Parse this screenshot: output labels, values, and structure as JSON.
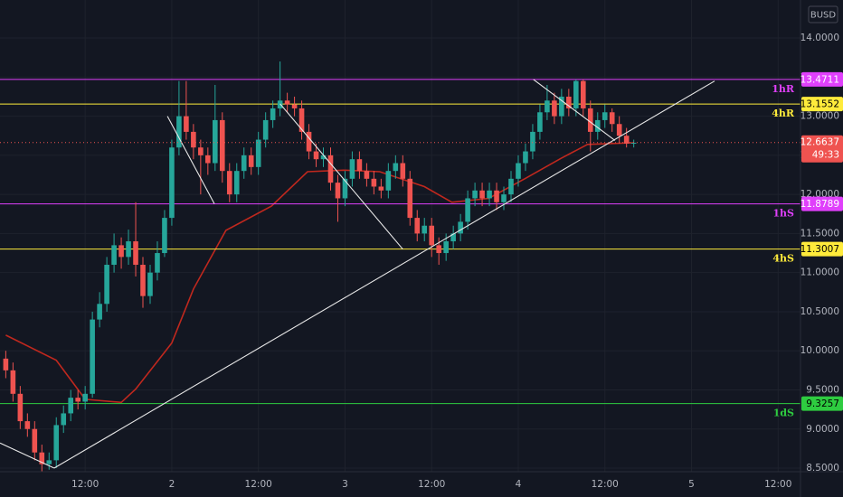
{
  "chart_data": {
    "type": "candlestick",
    "currency": "BUSD",
    "x": [
      -23,
      -22,
      -21,
      -20,
      -19,
      -18,
      -17,
      -16,
      -15,
      -14,
      -13,
      -12,
      -11,
      -10,
      -9,
      -8,
      -7,
      -6,
      -5,
      -4,
      -3,
      -2,
      -1,
      0,
      1,
      2,
      3,
      4,
      5,
      6,
      7,
      8,
      9,
      10,
      11,
      12,
      13,
      14,
      15,
      16,
      17,
      18,
      19,
      20,
      21,
      22,
      23,
      24,
      25,
      26,
      27,
      28,
      29,
      30,
      31,
      32,
      33,
      34,
      35,
      36,
      37,
      38,
      39,
      40,
      41,
      42,
      43,
      44,
      45,
      46,
      47,
      48,
      49,
      50,
      51,
      52,
      53,
      54,
      55,
      56,
      57,
      58,
      59,
      60,
      61,
      62,
      63,
      64
    ],
    "open": [
      9.9,
      9.75,
      9.45,
      9.1,
      9.0,
      8.7,
      8.55,
      8.6,
      9.05,
      9.2,
      9.4,
      9.35,
      9.45,
      10.4,
      10.6,
      11.1,
      11.35,
      11.2,
      11.4,
      11.1,
      10.7,
      11.0,
      11.25,
      11.7,
      12.6,
      13.0,
      12.8,
      12.6,
      12.5,
      12.4,
      12.95,
      12.3,
      12.0,
      12.3,
      12.5,
      12.35,
      12.7,
      12.95,
      13.1,
      13.2,
      13.15,
      13.1,
      12.8,
      12.55,
      12.45,
      12.5,
      12.15,
      11.95,
      12.2,
      12.45,
      12.3,
      12.2,
      12.1,
      12.05,
      12.3,
      12.4,
      12.2,
      11.7,
      11.5,
      11.6,
      11.35,
      11.25,
      11.4,
      11.5,
      11.65,
      11.95,
      12.05,
      11.95,
      12.05,
      11.9,
      12.0,
      12.2,
      12.4,
      12.55,
      12.8,
      13.05,
      13.2,
      13.0,
      13.25,
      13.1,
      13.45,
      13.1,
      12.8,
      12.95,
      13.05,
      12.9,
      12.75,
      12.65
    ],
    "high": [
      10.0,
      9.85,
      9.55,
      9.2,
      9.1,
      8.8,
      8.7,
      9.15,
      9.3,
      9.5,
      9.5,
      9.55,
      10.5,
      10.75,
      11.2,
      11.5,
      11.45,
      11.55,
      11.9,
      11.2,
      11.1,
      11.4,
      11.8,
      12.7,
      13.45,
      13.45,
      12.9,
      12.7,
      12.6,
      13.4,
      13.05,
      12.4,
      12.4,
      12.6,
      12.6,
      12.8,
      13.05,
      13.2,
      13.7,
      13.3,
      13.25,
      13.2,
      12.9,
      12.65,
      12.6,
      12.6,
      12.25,
      12.3,
      12.55,
      12.55,
      12.4,
      12.3,
      12.2,
      12.4,
      12.5,
      12.5,
      12.3,
      11.8,
      11.7,
      11.7,
      11.45,
      11.5,
      11.6,
      11.75,
      12.05,
      12.15,
      12.15,
      12.15,
      12.15,
      12.1,
      12.3,
      12.5,
      12.65,
      12.9,
      13.15,
      13.4,
      13.3,
      13.35,
      13.35,
      13.47,
      13.47,
      13.2,
      13.05,
      13.15,
      13.1,
      13.0,
      12.85,
      12.7
    ],
    "low": [
      9.65,
      9.35,
      9.0,
      8.9,
      8.6,
      8.45,
      8.48,
      8.5,
      8.95,
      9.1,
      9.25,
      9.25,
      9.4,
      10.3,
      10.5,
      11.0,
      11.05,
      11.1,
      10.95,
      10.55,
      10.6,
      10.9,
      11.2,
      11.6,
      12.5,
      12.7,
      12.45,
      12.0,
      12.25,
      12.3,
      12.15,
      11.9,
      11.9,
      12.2,
      12.25,
      12.25,
      12.6,
      12.85,
      13.0,
      13.05,
      13.0,
      12.7,
      12.45,
      12.35,
      12.35,
      12.05,
      11.65,
      11.85,
      12.1,
      12.2,
      12.1,
      12.0,
      11.95,
      11.95,
      12.2,
      12.1,
      11.6,
      11.4,
      11.4,
      11.2,
      11.1,
      11.15,
      11.3,
      11.4,
      11.55,
      11.85,
      11.85,
      11.85,
      11.8,
      11.8,
      11.9,
      12.1,
      12.3,
      12.45,
      12.7,
      12.95,
      12.9,
      12.9,
      13.0,
      13.0,
      13.0,
      12.55,
      12.7,
      12.85,
      12.8,
      12.65,
      12.6,
      12.6
    ],
    "close": [
      9.75,
      9.45,
      9.1,
      9.0,
      8.7,
      8.55,
      8.6,
      9.05,
      9.2,
      9.4,
      9.35,
      9.45,
      10.4,
      10.6,
      11.1,
      11.35,
      11.2,
      11.4,
      11.1,
      10.7,
      11.0,
      11.25,
      11.7,
      12.6,
      13.0,
      12.8,
      12.6,
      12.5,
      12.4,
      12.95,
      12.3,
      12.0,
      12.3,
      12.5,
      12.35,
      12.7,
      12.95,
      13.1,
      13.2,
      13.15,
      13.1,
      12.8,
      12.55,
      12.45,
      12.5,
      12.15,
      11.95,
      12.2,
      12.45,
      12.3,
      12.2,
      12.1,
      12.05,
      12.3,
      12.4,
      12.2,
      11.7,
      11.5,
      11.6,
      11.35,
      11.25,
      11.4,
      11.5,
      11.65,
      11.95,
      12.05,
      11.95,
      12.05,
      11.9,
      12.0,
      12.2,
      12.4,
      12.55,
      12.8,
      13.05,
      13.2,
      13.0,
      13.25,
      13.1,
      13.45,
      13.1,
      12.8,
      12.95,
      13.05,
      12.9,
      12.75,
      12.65,
      12.66
    ],
    "up_color": "#26a69a",
    "down_color": "#ef5350",
    "xlim": [
      -23.8,
      87.1
    ],
    "xticks": [
      {
        "value": -12,
        "label": "12:00"
      },
      {
        "value": 0,
        "label": "2"
      },
      {
        "value": 12,
        "label": "12:00"
      },
      {
        "value": 24,
        "label": "3"
      },
      {
        "value": 36,
        "label": "12:00"
      },
      {
        "value": 48,
        "label": "4"
      },
      {
        "value": 60,
        "label": "12:00"
      },
      {
        "value": 72,
        "label": "5"
      },
      {
        "value": 84,
        "label": "12:00"
      }
    ],
    "ylim": [
      8.454,
      14.486
    ],
    "yticks": [
      {
        "value": 8.5,
        "label": "8.5000"
      },
      {
        "value": 9,
        "label": "9.0000"
      },
      {
        "value": 9.5,
        "label": "9.5000"
      },
      {
        "value": 10,
        "label": "10.0000"
      },
      {
        "value": 10.5,
        "label": "10.5000"
      },
      {
        "value": 11,
        "label": "11.0000"
      },
      {
        "value": 11.5,
        "label": "11.5000"
      },
      {
        "value": 12,
        "label": "12.0000"
      },
      {
        "value": 12.5,
        "label": "12.5000"
      },
      {
        "value": 13,
        "label": "13.0000"
      },
      {
        "value": 13.5,
        "label": "13.5000"
      },
      {
        "value": 14,
        "label": "14.0000"
      }
    ],
    "grid": true,
    "moving_average": {
      "color": "#c0281e",
      "x": [
        -23,
        -16,
        -12,
        -7,
        -5,
        -1,
        0,
        3,
        7.5,
        13.8,
        18.8,
        23.8,
        28.8,
        35,
        38.8,
        43.9,
        48.9,
        53.9,
        57.6,
        64
      ],
      "values": [
        10.2,
        9.88,
        9.38,
        9.34,
        9.51,
        9.98,
        10.1,
        10.79,
        11.54,
        11.85,
        12.29,
        12.31,
        12.29,
        12.1,
        11.9,
        11.95,
        12.2,
        12.46,
        12.64,
        12.66
      ]
    },
    "levels": [
      {
        "value": 13.4711,
        "label": "1hR",
        "color": "#e040fb"
      },
      {
        "value": 13.1552,
        "label": "4hR",
        "color": "#ffeb3b"
      },
      {
        "value": 11.8789,
        "label": "1hS",
        "color": "#e040fb"
      },
      {
        "value": 11.3007,
        "label": "4hS",
        "color": "#ffeb3b"
      },
      {
        "value": 9.3257,
        "label": "1dS",
        "color": "#2ecc40"
      }
    ],
    "trendlines": [
      {
        "x": [
          -23.8,
          -16.3
        ],
        "y": [
          8.82,
          8.5
        ]
      },
      {
        "x": [
          -16.3,
          75.2
        ],
        "y": [
          8.5,
          13.45
        ]
      },
      {
        "x": [
          -0.6,
          5.9
        ],
        "y": [
          13.0,
          11.88
        ]
      },
      {
        "x": [
          15,
          32
        ],
        "y": [
          13.16,
          11.3
        ]
      },
      {
        "x": [
          50.1,
          61.4
        ],
        "y": [
          13.47,
          12.69
        ]
      }
    ],
    "last_price": {
      "value": 12.6637,
      "countdown": "49:33",
      "color": "#ef5350"
    }
  }
}
